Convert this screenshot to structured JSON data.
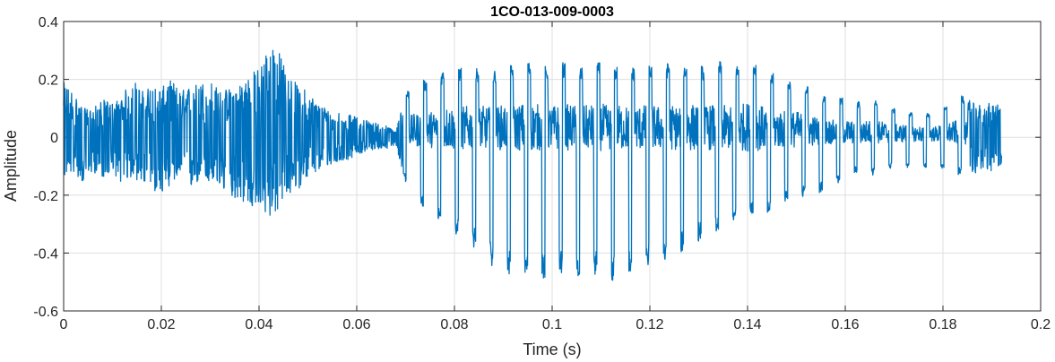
{
  "chart_data": {
    "type": "line",
    "title": "1CO-013-009-0003",
    "xlabel": "Time (s)",
    "ylabel": "Amplitude",
    "xlim": [
      0,
      0.2
    ],
    "ylim": [
      -0.6,
      0.4
    ],
    "xticks": [
      0,
      0.02,
      0.04,
      0.06,
      0.08,
      0.1,
      0.12,
      0.14,
      0.16,
      0.18,
      0.2
    ],
    "xtick_labels": [
      "0",
      "0.02",
      "0.04",
      "0.06",
      "0.08",
      "0.1",
      "0.12",
      "0.14",
      "0.16",
      "0.18",
      "0.2"
    ],
    "yticks": [
      -0.6,
      -0.4,
      -0.2,
      0,
      0.2,
      0.4
    ],
    "ytick_labels": [
      "-0.6",
      "-0.4",
      "-0.2",
      "0",
      "0.2",
      "0.4"
    ],
    "grid": true,
    "line_color": "#0072BD",
    "series": [
      {
        "x": [
          0,
          0.002,
          0.004,
          0.006,
          0.008,
          0.01,
          0.012,
          0.014,
          0.016,
          0.018,
          0.02,
          0.022,
          0.024,
          0.026,
          0.028,
          0.03,
          0.032,
          0.034,
          0.036,
          0.038,
          0.04,
          0.0415,
          0.043,
          0.0445,
          0.046,
          0.048,
          0.05,
          0.052,
          0.054,
          0.056,
          0.058,
          0.06,
          0.062,
          0.064,
          0.066,
          0.068,
          0.07,
          0.072,
          0.074,
          0.076,
          0.078,
          0.08,
          0.082,
          0.084,
          0.086,
          0.088,
          0.09,
          0.092,
          0.094,
          0.096,
          0.098,
          0.1,
          0.102,
          0.104,
          0.106,
          0.108,
          0.11,
          0.112,
          0.114,
          0.116,
          0.118,
          0.12,
          0.122,
          0.124,
          0.126,
          0.128,
          0.13,
          0.132,
          0.134,
          0.136,
          0.138,
          0.14,
          0.142,
          0.144,
          0.146,
          0.148,
          0.15,
          0.152,
          0.154,
          0.156,
          0.158,
          0.16,
          0.162,
          0.164,
          0.166,
          0.168,
          0.17,
          0.172,
          0.174,
          0.176,
          0.178,
          0.18,
          0.182,
          0.184,
          0.186,
          0.188,
          0.19,
          0.192
        ],
        "upper": [
          0.19,
          0.16,
          0.1,
          0.1,
          0.13,
          0.12,
          0.14,
          0.21,
          0.16,
          0.18,
          0.17,
          0.2,
          0.16,
          0.18,
          0.19,
          0.2,
          0.16,
          0.17,
          0.19,
          0.22,
          0.24,
          0.3,
          0.34,
          0.28,
          0.22,
          0.18,
          0.16,
          0.12,
          0.1,
          0.09,
          0.08,
          0.07,
          0.06,
          0.05,
          0.04,
          0.02,
          0.16,
          0.18,
          0.2,
          0.2,
          0.24,
          0.24,
          0.24,
          0.24,
          0.24,
          0.23,
          0.25,
          0.25,
          0.26,
          0.26,
          0.25,
          0.24,
          0.26,
          0.25,
          0.24,
          0.25,
          0.26,
          0.24,
          0.25,
          0.24,
          0.25,
          0.25,
          0.24,
          0.26,
          0.24,
          0.26,
          0.25,
          0.24,
          0.27,
          0.23,
          0.25,
          0.27,
          0.26,
          0.22,
          0.22,
          0.2,
          0.2,
          0.18,
          0.16,
          0.14,
          0.13,
          0.14,
          0.12,
          0.13,
          0.13,
          0.12,
          0.1,
          0.1,
          0.08,
          0.09,
          0.08,
          0.1,
          0.12,
          0.15,
          0.12,
          0.11,
          0.12,
          0.12
        ],
        "lower": [
          -0.14,
          -0.12,
          -0.16,
          -0.12,
          -0.14,
          -0.12,
          -0.16,
          -0.14,
          -0.16,
          -0.18,
          -0.2,
          -0.16,
          -0.14,
          -0.18,
          -0.15,
          -0.16,
          -0.18,
          -0.2,
          -0.22,
          -0.24,
          -0.26,
          -0.28,
          -0.27,
          -0.25,
          -0.2,
          -0.18,
          -0.14,
          -0.12,
          -0.1,
          -0.09,
          -0.08,
          -0.06,
          -0.05,
          -0.04,
          -0.04,
          -0.03,
          -0.16,
          -0.22,
          -0.25,
          -0.28,
          -0.3,
          -0.33,
          -0.36,
          -0.38,
          -0.42,
          -0.45,
          -0.46,
          -0.48,
          -0.47,
          -0.48,
          -0.49,
          -0.48,
          -0.47,
          -0.5,
          -0.49,
          -0.48,
          -0.47,
          -0.5,
          -0.48,
          -0.47,
          -0.45,
          -0.44,
          -0.43,
          -0.42,
          -0.4,
          -0.38,
          -0.36,
          -0.34,
          -0.32,
          -0.3,
          -0.28,
          -0.28,
          -0.27,
          -0.26,
          -0.24,
          -0.22,
          -0.22,
          -0.2,
          -0.2,
          -0.18,
          -0.16,
          -0.15,
          -0.12,
          -0.14,
          -0.13,
          -0.12,
          -0.1,
          -0.1,
          -0.12,
          -0.1,
          -0.12,
          -0.11,
          -0.14,
          -0.12,
          -0.13,
          -0.11,
          -0.12,
          -0.11
        ]
      }
    ]
  }
}
